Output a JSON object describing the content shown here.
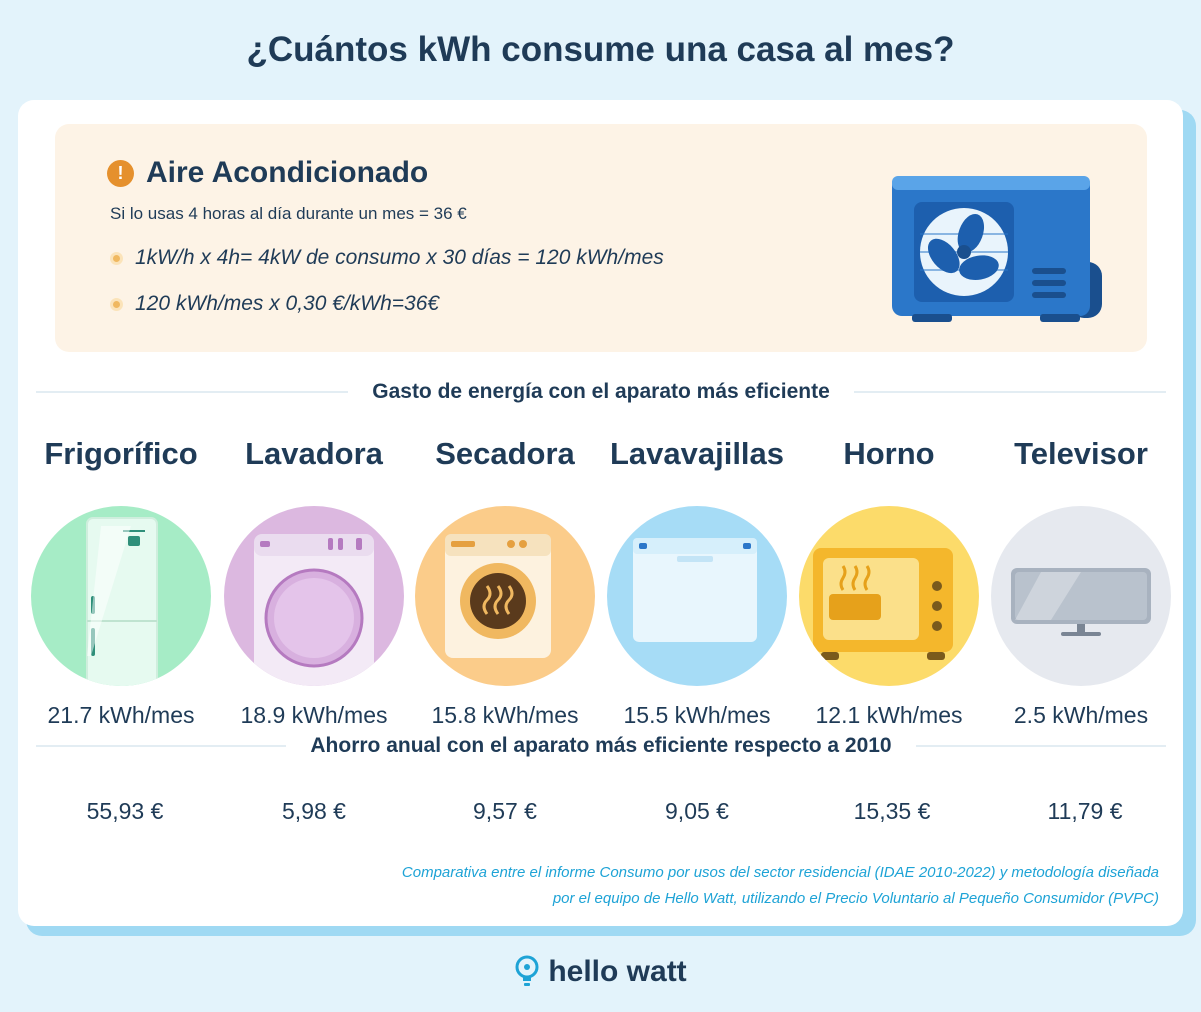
{
  "title": "¿Cuántos kWh consume una casa al mes?",
  "ac": {
    "icon": "alert-icon",
    "title": "Aire Acondicionado",
    "subtitle": "Si lo usas 4 horas al día durante un mes = 36 €",
    "lines": [
      "1kW/h x 4h= 4kW de consumo x 30 días = 120 kWh/mes",
      "120 kWh/mes x 0,30 €/kWh=36€"
    ]
  },
  "energy_heading": "Gasto de energía con el aparato más eficiente",
  "savings_heading": "Ahorro anual con el aparato más eficiente respecto a 2010",
  "appliances": [
    {
      "name": "Frigorífico",
      "value": "21.7 kWh/mes",
      "saving": "55,93 €",
      "icon": "fridge-icon",
      "color": "#a6ecc6"
    },
    {
      "name": "Lavadora",
      "value": "18.9 kWh/mes",
      "saving": "5,98 €",
      "icon": "washing-machine-icon",
      "color": "#dcb8e0"
    },
    {
      "name": "Secadora",
      "value": "15.8 kWh/mes",
      "saving": "9,57 €",
      "icon": "dryer-icon",
      "color": "#fbcc8a"
    },
    {
      "name": "Lavavajillas",
      "value": "15.5 kWh/mes",
      "saving": "9,05 €",
      "icon": "dishwasher-icon",
      "color": "#a6dcf6"
    },
    {
      "name": "Horno",
      "value": "12.1 kWh/mes",
      "saving": "15,35 €",
      "icon": "oven-icon",
      "color": "#fcdb6a"
    },
    {
      "name": "Televisor",
      "value": "2.5 kWh/mes",
      "saving": "11,79 €",
      "icon": "tv-icon",
      "color": "#e6e9ef"
    }
  ],
  "footnote": {
    "line1": "Comparativa entre el informe Consumo por usos del sector residencial (IDAE 2010-2022) y metodología diseñada",
    "line2": "por el equipo de Hello Watt, utilizando el Precio Voluntario al Pequeño Consumidor (PVPC)"
  },
  "brand": {
    "name": "hello watt",
    "icon": "lightbulb-icon"
  },
  "colors": {
    "background": "#e3f3fb",
    "text": "#1f3b57",
    "accent": "#1ea3d6",
    "warning": "#e5902d",
    "ac_panel": "#fdf3e6"
  }
}
